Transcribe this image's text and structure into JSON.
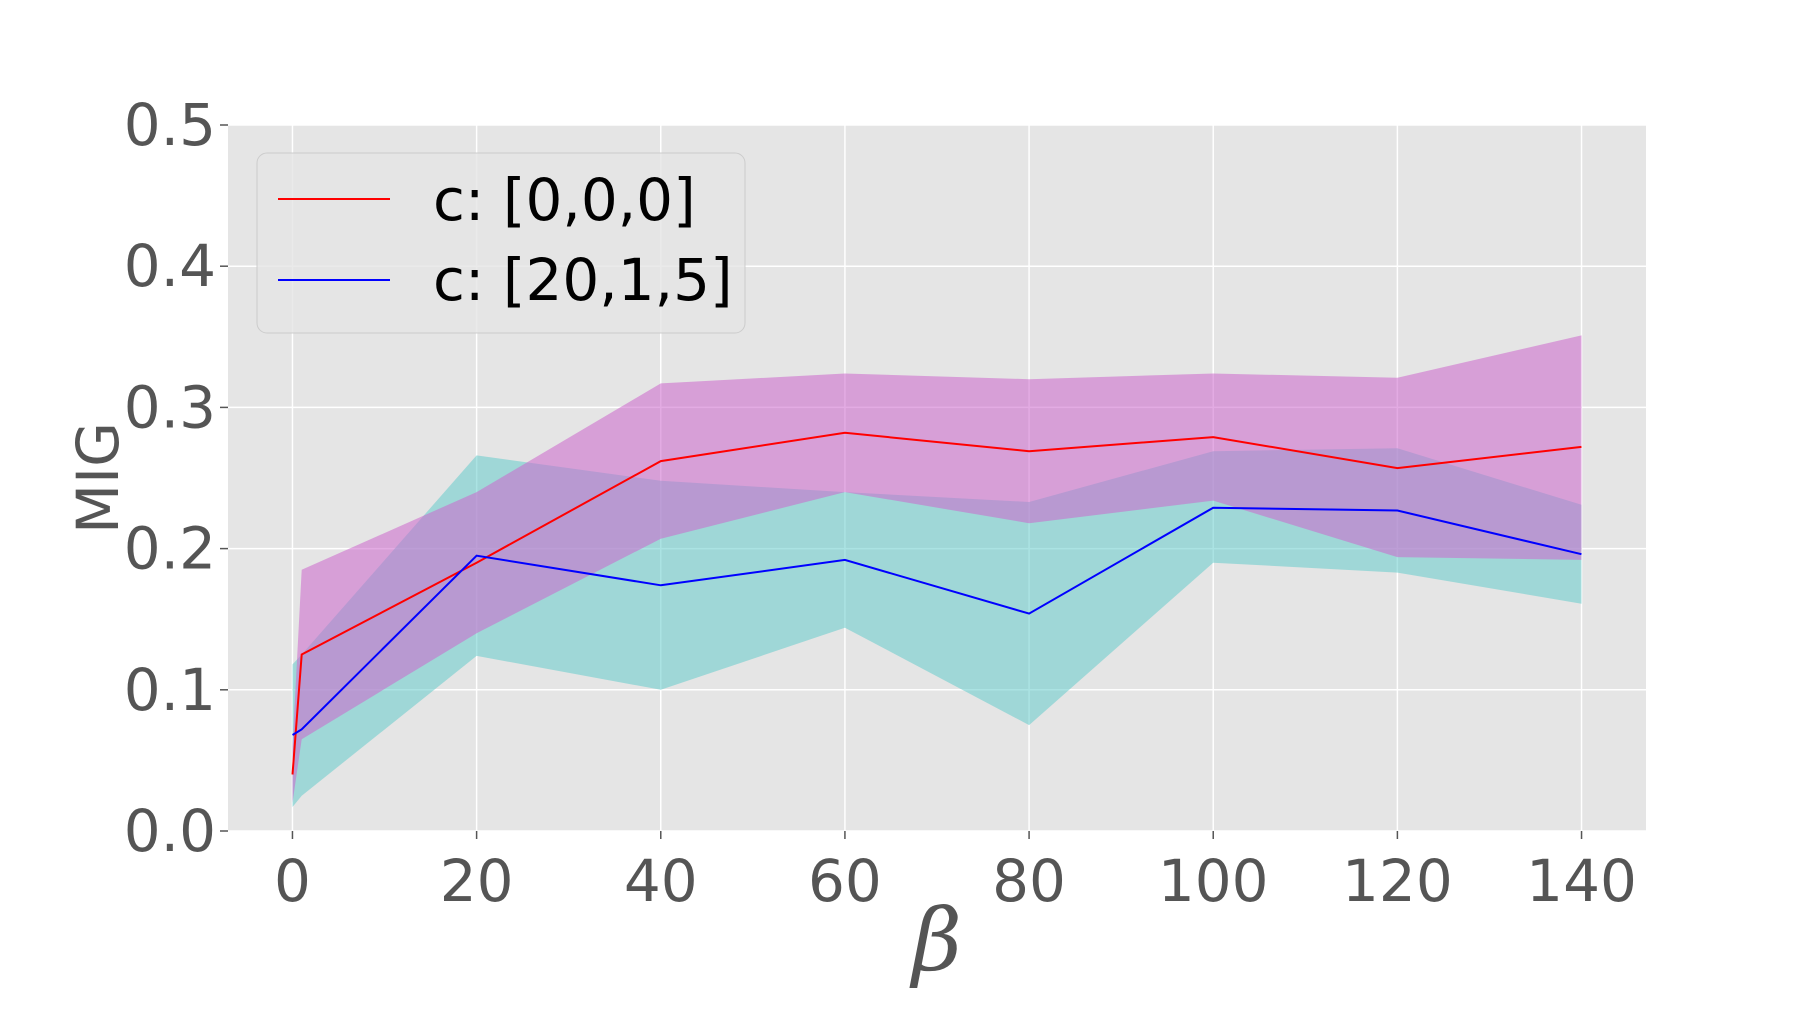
{
  "chart_data": {
    "type": "line",
    "title": "",
    "xlabel": "β",
    "ylabel": "MIG",
    "x": [
      0,
      1,
      20,
      40,
      60,
      80,
      100,
      120,
      140
    ],
    "xlim": [
      -7,
      147
    ],
    "ylim": [
      0.0,
      0.5
    ],
    "xticks": [
      "0",
      "20",
      "40",
      "60",
      "80",
      "100",
      "120",
      "140"
    ],
    "xtick_values": [
      0,
      20,
      40,
      60,
      80,
      100,
      120,
      140
    ],
    "yticks": [
      "0.0",
      "0.1",
      "0.2",
      "0.3",
      "0.4",
      "0.5"
    ],
    "ytick_values": [
      0.0,
      0.1,
      0.2,
      0.3,
      0.4,
      0.5
    ],
    "grid": true,
    "legend_position": "top-left",
    "series": [
      {
        "name": "c: [0,0,0]",
        "color": "#ff0000",
        "band_color": "#cc66cc",
        "values": [
          0.04,
          0.125,
          0.19,
          0.262,
          0.282,
          0.269,
          0.279,
          0.257,
          0.272
        ],
        "lower": [
          0.02,
          0.065,
          0.14,
          0.207,
          0.24,
          0.218,
          0.234,
          0.194,
          0.192
        ],
        "upper": [
          0.06,
          0.185,
          0.24,
          0.317,
          0.324,
          0.32,
          0.324,
          0.321,
          0.351
        ]
      },
      {
        "name": "c: [20,1,5]",
        "color": "#0000ff",
        "band_color": "#66cccc",
        "values": [
          0.068,
          0.072,
          0.195,
          0.174,
          0.192,
          0.154,
          0.229,
          0.227,
          0.196
        ],
        "lower": [
          0.017,
          0.025,
          0.124,
          0.1,
          0.144,
          0.075,
          0.19,
          0.183,
          0.161
        ],
        "upper": [
          0.118,
          0.125,
          0.266,
          0.248,
          0.24,
          0.233,
          0.269,
          0.271,
          0.231
        ]
      }
    ]
  }
}
